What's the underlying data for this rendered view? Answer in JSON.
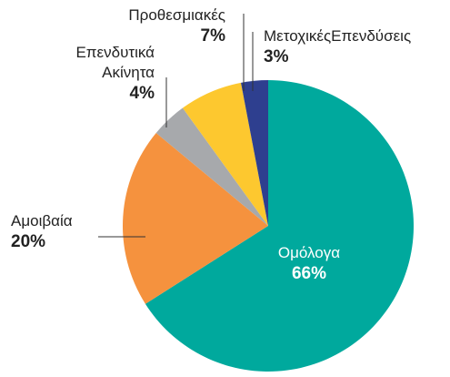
{
  "chart_data": {
    "type": "pie",
    "categories": [
      "Ομόλογα",
      "Αμοιβαία",
      "Επενδυτικά Ακίνητα",
      "Προθεσμιακές",
      "ΜετοχικέςΕπενδύσεις"
    ],
    "values": [
      66,
      20,
      4,
      7,
      3
    ],
    "value_labels": [
      "66%",
      "20%",
      "4%",
      "7%",
      "3%"
    ],
    "colors": [
      "#00a99d",
      "#f5923e",
      "#a7a9ac",
      "#fdc82f",
      "#2e3f8f"
    ]
  }
}
